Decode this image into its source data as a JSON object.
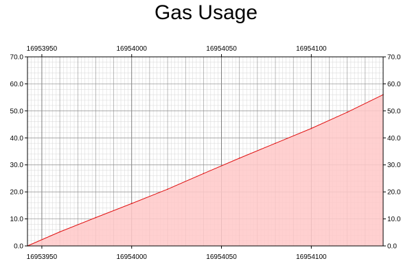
{
  "chart_data": {
    "type": "area",
    "title": "Gas Usage",
    "xlabel": "",
    "ylabel": "",
    "xlim": [
      16953942,
      16954140
    ],
    "ylim": [
      0,
      70
    ],
    "x_ticks": [
      16953950,
      16954000,
      16954050,
      16954100
    ],
    "x_tick_labels": [
      "16953950",
      "16954000",
      "16954050",
      "16954100"
    ],
    "y_ticks": [
      0,
      10,
      20,
      30,
      40,
      50,
      60,
      70
    ],
    "y_tick_labels": [
      "0.0",
      "10.0",
      "20.0",
      "30.0",
      "40.0",
      "50.0",
      "60.0",
      "70.0"
    ],
    "grid": true,
    "legend": "none",
    "series": [
      {
        "x": [
          16953942,
          16953960,
          16953980,
          16954000,
          16954020,
          16954040,
          16954060,
          16954080,
          16954100,
          16954120,
          16954140
        ],
        "values": [
          0.0,
          5.2,
          10.5,
          15.7,
          21.0,
          26.8,
          32.5,
          38.0,
          43.5,
          49.5,
          56.0
        ]
      }
    ],
    "colors": {
      "line": "#e01010",
      "fill": "#ffc8c8",
      "grid_major": "#8c8c8c",
      "grid_minor": "#d6d6d6",
      "axis": "#000000"
    }
  }
}
